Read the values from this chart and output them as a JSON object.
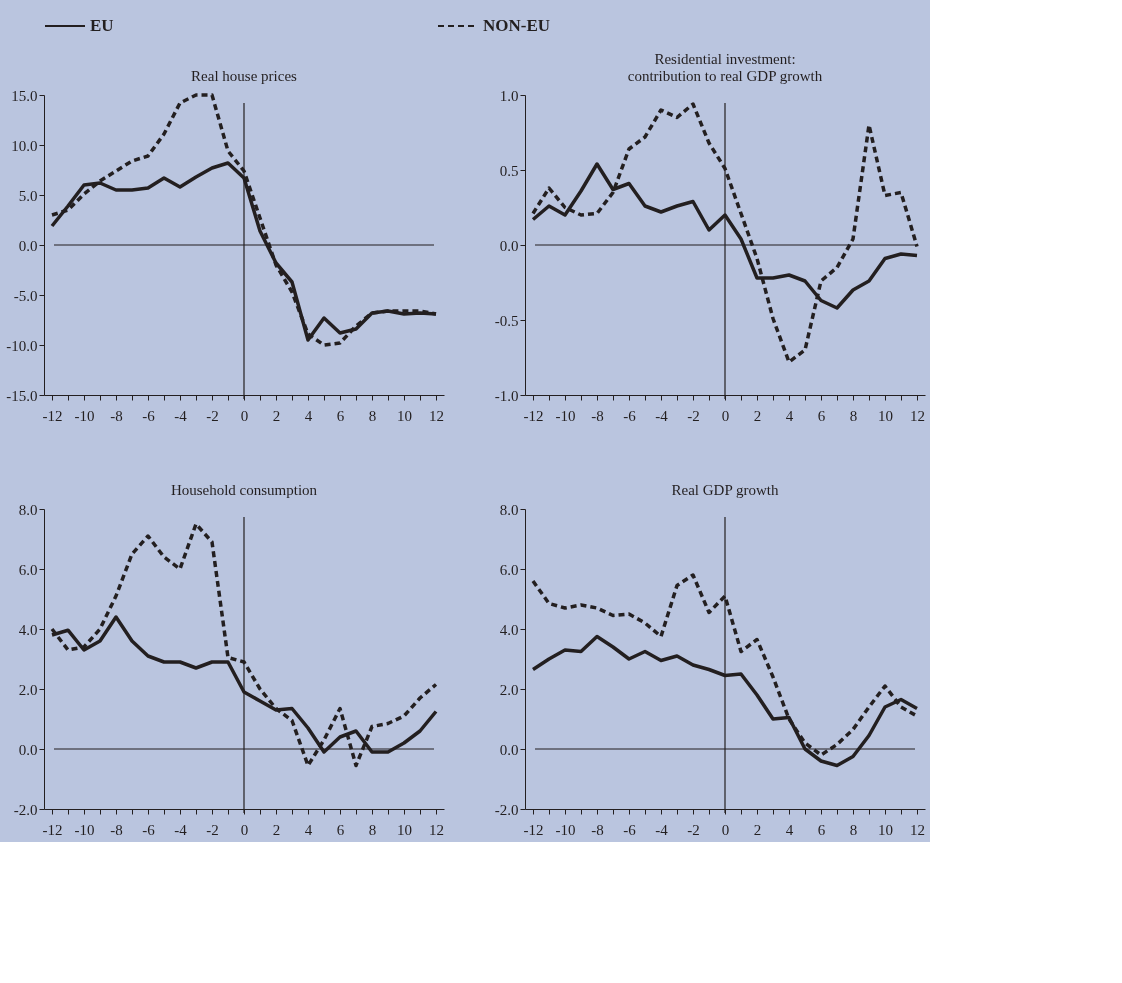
{
  "chart_data": [
    {
      "type": "line",
      "title": "Real house prices",
      "legend": "top",
      "categories": [
        "-12",
        null,
        "-10",
        null,
        "-8",
        null,
        "-6",
        null,
        "-4",
        null,
        "-2",
        null,
        "0",
        null,
        "2",
        null,
        "4",
        null,
        "6",
        null,
        "8",
        null,
        "10",
        null,
        "12"
      ],
      "series": [
        {
          "name": "EU",
          "color": "#231f20",
          "line_style": "solid",
          "values": [
            1.9,
            3.9,
            6.0,
            6.2,
            5.5,
            5.5,
            5.7,
            6.7,
            5.8,
            6.8,
            7.7,
            8.2,
            6.7,
            1.4,
            -1.8,
            -3.7,
            -9.5,
            -7.3,
            -8.8,
            -8.4,
            -6.8,
            -6.6,
            -6.9,
            -6.8,
            -6.9
          ]
        },
        {
          "name": "NON-EU",
          "color": "#231f20",
          "line_style": "dashed",
          "values": [
            3.0,
            3.5,
            5.1,
            6.4,
            7.4,
            8.4,
            8.9,
            11.1,
            14.2,
            15.0,
            15.0,
            9.4,
            7.4,
            2.7,
            -2.0,
            -4.7,
            -8.9,
            -10.0,
            -9.8,
            -8.1,
            -6.8,
            -6.6,
            -6.6,
            -6.6,
            -6.9
          ]
        }
      ],
      "ylim": [
        -15,
        15
      ],
      "yticks": [
        {
          "value": -15,
          "label": "-15.0"
        },
        {
          "value": -10,
          "label": "-10.0"
        },
        {
          "value": -5,
          "label": "-5.0"
        },
        {
          "value": 0,
          "label": "0.0"
        },
        {
          "value": 5,
          "label": "5.0"
        },
        {
          "value": 10,
          "label": "10.0"
        },
        {
          "value": 15,
          "label": "15.0"
        }
      ],
      "ref_lines": [
        {
          "axis": "y",
          "value": 0
        },
        {
          "axis": "x",
          "value": "0"
        }
      ]
    },
    {
      "type": "line",
      "title": [
        "Residential investment:",
        "contribution to real GDP growth"
      ],
      "categories": [
        "-12",
        null,
        "-10",
        null,
        "-8",
        null,
        "-6",
        null,
        "-4",
        null,
        "-2",
        null,
        "0",
        null,
        "2",
        null,
        "4",
        null,
        "6",
        null,
        "8",
        null,
        "10",
        null,
        "12"
      ],
      "series": [
        {
          "name": "EU",
          "color": "#231f20",
          "line_style": "solid",
          "values": [
            0.17,
            0.26,
            0.2,
            0.36,
            0.54,
            0.37,
            0.41,
            0.26,
            0.22,
            0.26,
            0.29,
            0.1,
            0.2,
            0.04,
            -0.22,
            -0.22,
            -0.2,
            -0.24,
            -0.37,
            -0.42,
            -0.3,
            -0.24,
            -0.09,
            -0.06,
            -0.07
          ]
        },
        {
          "name": "NON-EU",
          "color": "#231f20",
          "line_style": "dashed",
          "values": [
            0.21,
            0.38,
            0.25,
            0.2,
            0.21,
            0.35,
            0.64,
            0.72,
            0.9,
            0.85,
            0.94,
            0.68,
            0.51,
            0.21,
            -0.09,
            -0.49,
            -0.78,
            -0.7,
            -0.24,
            -0.15,
            0.04,
            0.8,
            0.33,
            0.35,
            -0.01
          ]
        }
      ],
      "ylim": [
        -1,
        1
      ],
      "yticks": [
        {
          "value": -1,
          "label": "-1.0"
        },
        {
          "value": -0.5,
          "label": "-0.5"
        },
        {
          "value": 0,
          "label": "0.0"
        },
        {
          "value": 0.5,
          "label": "0.5"
        },
        {
          "value": 1,
          "label": "1.0"
        }
      ],
      "ref_lines": [
        {
          "axis": "y",
          "value": 0
        },
        {
          "axis": "x",
          "value": "0"
        }
      ]
    },
    {
      "type": "line",
      "title": "Household consumption",
      "categories": [
        "-12",
        null,
        "-10",
        null,
        "-8",
        null,
        "-6",
        null,
        "-4",
        null,
        "-2",
        null,
        "0",
        null,
        "2",
        null,
        "4",
        null,
        "6",
        null,
        "8",
        null,
        "10",
        null,
        "12"
      ],
      "series": [
        {
          "name": "EU",
          "color": "#231f20",
          "line_style": "solid",
          "values": [
            3.8,
            3.96,
            3.3,
            3.6,
            4.4,
            3.6,
            3.1,
            2.9,
            2.9,
            2.7,
            2.9,
            2.9,
            1.9,
            1.6,
            1.3,
            1.35,
            0.7,
            -0.1,
            0.4,
            0.6,
            -0.1,
            -0.1,
            0.2,
            0.6,
            1.25
          ]
        },
        {
          "name": "NON-EU",
          "color": "#231f20",
          "line_style": "dashed",
          "values": [
            4.0,
            3.3,
            3.4,
            4.0,
            5.1,
            6.5,
            7.1,
            6.4,
            6.0,
            7.5,
            6.9,
            3.05,
            2.9,
            2.0,
            1.35,
            0.95,
            -0.55,
            0.3,
            1.35,
            -0.55,
            0.75,
            0.85,
            1.1,
            1.7,
            2.15
          ]
        }
      ],
      "ylim": [
        -2,
        8
      ],
      "yticks": [
        {
          "value": -2,
          "label": "-2.0"
        },
        {
          "value": 0,
          "label": "0.0"
        },
        {
          "value": 2,
          "label": "2.0"
        },
        {
          "value": 4,
          "label": "4.0"
        },
        {
          "value": 6,
          "label": "6.0"
        },
        {
          "value": 8,
          "label": "8.0"
        }
      ],
      "ref_lines": [
        {
          "axis": "y",
          "value": 0
        },
        {
          "axis": "x",
          "value": "0"
        }
      ]
    },
    {
      "type": "line",
      "title": "Real GDP growth",
      "categories": [
        "-12",
        null,
        "-10",
        null,
        "-8",
        null,
        "-6",
        null,
        "-4",
        null,
        "-2",
        null,
        "0",
        null,
        "2",
        null,
        "4",
        null,
        "6",
        null,
        "8",
        null,
        "10",
        null,
        "12"
      ],
      "series": [
        {
          "name": "EU",
          "color": "#231f20",
          "line_style": "solid",
          "values": [
            2.65,
            3.0,
            3.3,
            3.25,
            3.75,
            3.4,
            3.0,
            3.25,
            2.95,
            3.1,
            2.8,
            2.65,
            2.45,
            2.5,
            1.8,
            1.0,
            1.05,
            0.0,
            -0.4,
            -0.55,
            -0.25,
            0.45,
            1.4,
            1.65,
            1.35
          ]
        },
        {
          "name": "NON-EU",
          "color": "#231f20",
          "line_style": "dashed",
          "values": [
            5.6,
            4.85,
            4.7,
            4.8,
            4.7,
            4.45,
            4.5,
            4.2,
            3.75,
            5.45,
            5.8,
            4.55,
            5.1,
            3.25,
            3.65,
            2.4,
            1.0,
            0.2,
            -0.2,
            0.15,
            0.65,
            1.4,
            2.1,
            1.4,
            1.1
          ]
        }
      ],
      "ylim": [
        -2,
        8
      ],
      "yticks": [
        {
          "value": -2,
          "label": "-2.0"
        },
        {
          "value": 0,
          "label": "0.0"
        },
        {
          "value": 2,
          "label": "2.0"
        },
        {
          "value": 4,
          "label": "4.0"
        },
        {
          "value": 6,
          "label": "6.0"
        },
        {
          "value": 8,
          "label": "8.0"
        }
      ],
      "ref_lines": [
        {
          "axis": "y",
          "value": 0
        },
        {
          "axis": "x",
          "value": "0"
        }
      ]
    }
  ]
}
